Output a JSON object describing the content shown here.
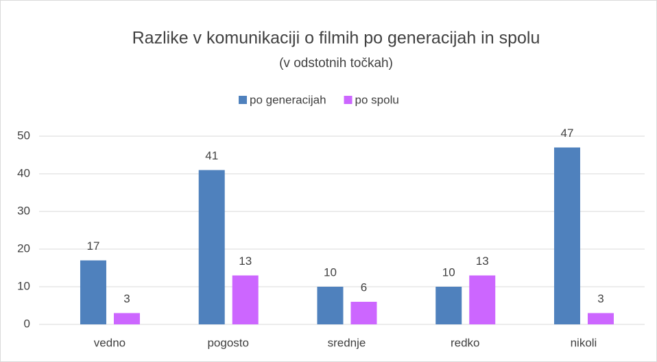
{
  "chart_data": {
    "type": "bar",
    "title": "Razlike v komunikaciji o filmih po generacijah in spolu",
    "subtitle": "(v odstotnih točkah)",
    "categories": [
      "vedno",
      "pogosto",
      "srednje",
      "redko",
      "nikoli"
    ],
    "series": [
      {
        "name": "po generacijah",
        "color": "#4f81bd",
        "values": [
          17,
          41,
          10,
          10,
          47
        ]
      },
      {
        "name": "po spolu",
        "color": "#cc66ff",
        "values": [
          3,
          13,
          6,
          13,
          3
        ]
      }
    ],
    "ylim": [
      0,
      50
    ],
    "yticks": [
      0,
      10,
      20,
      30,
      40,
      50
    ],
    "grid": true,
    "legend": "top"
  }
}
